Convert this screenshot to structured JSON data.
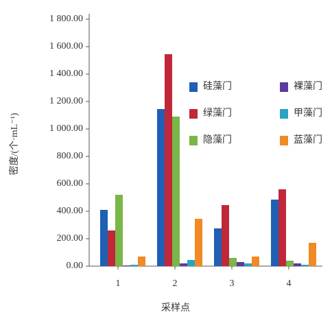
{
  "chart_data": {
    "type": "bar",
    "x_label": "采样点",
    "y_label": "密度/(个·mL⁻¹)",
    "categories": [
      "1",
      "2",
      "3",
      "4"
    ],
    "series": [
      {
        "name": "硅藻门",
        "color": "#1f5fb4",
        "values": [
          410,
          1145,
          275,
          485
        ]
      },
      {
        "name": "绿藻门",
        "color": "#c0283a",
        "values": [
          260,
          1545,
          445,
          560
        ]
      },
      {
        "name": "隐藻门",
        "color": "#7ab648",
        "values": [
          520,
          1090,
          60,
          40
        ]
      },
      {
        "name": "裸藻门",
        "color": "#5b3c9c",
        "values": [
          5,
          20,
          30,
          20
        ]
      },
      {
        "name": "甲藻门",
        "color": "#2aa3c4",
        "values": [
          10,
          45,
          20,
          10
        ]
      },
      {
        "name": "蓝藻门",
        "color": "#f08a24",
        "values": [
          70,
          345,
          70,
          170
        ]
      }
    ],
    "ylim": [
      0,
      1800
    ],
    "yticks": [
      {
        "value": 0,
        "label": "0.00"
      },
      {
        "value": 200,
        "label": "200.00"
      },
      {
        "value": 400,
        "label": "400.00"
      },
      {
        "value": 600,
        "label": "600.00"
      },
      {
        "value": 800,
        "label": "800.00"
      },
      {
        "value": 1000,
        "label": "1 000.00"
      },
      {
        "value": 1200,
        "label": "1 200.00"
      },
      {
        "value": 1400,
        "label": "1 400.00"
      },
      {
        "value": 1600,
        "label": "1 600.00"
      },
      {
        "value": 1800,
        "label": "1 800.00"
      }
    ],
    "legend": "upper right"
  }
}
